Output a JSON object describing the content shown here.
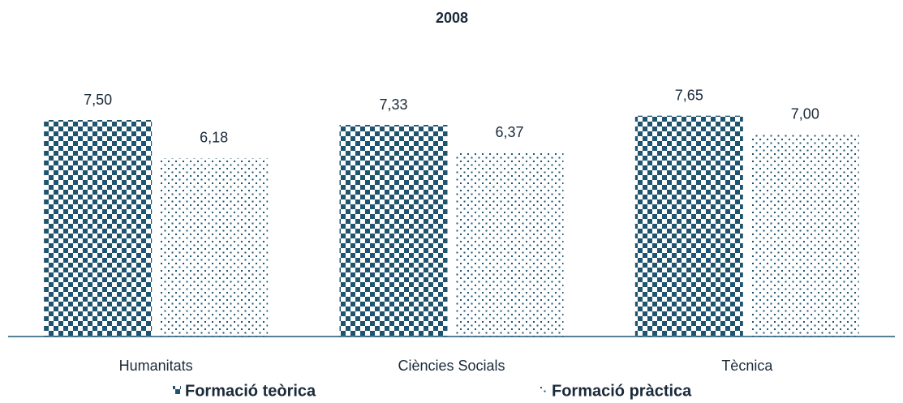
{
  "chart_data": {
    "type": "bar",
    "title": "2008",
    "categories": [
      "Humanitats",
      "Ciències Socials",
      "Tècnica"
    ],
    "series": [
      {
        "name": "Formació teòrica",
        "color": "#1f5470",
        "pattern": "checker",
        "values": [
          7.5,
          7.33,
          7.65
        ],
        "value_labels": [
          "7,50",
          "7,33",
          "7,65"
        ]
      },
      {
        "name": "Formació pràctica",
        "color": "#1f5470",
        "pattern": "dots",
        "values": [
          6.18,
          6.37,
          7.0
        ],
        "value_labels": [
          "6,18",
          "6,37",
          "7,00"
        ]
      }
    ],
    "ylim": [
      0,
      10
    ],
    "legend": "bottom"
  }
}
